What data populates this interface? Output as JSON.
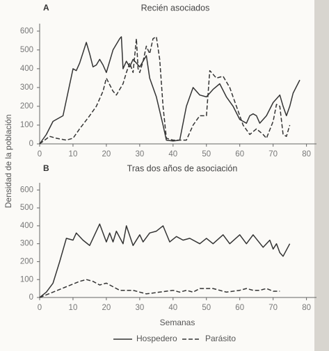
{
  "chart_data": [
    {
      "type": "line",
      "panel": "A",
      "title": "Recién asociados",
      "ylabel": "Densidad de la población",
      "xlim": [
        0,
        83
      ],
      "ylim": [
        0,
        640
      ],
      "xticks": [
        0,
        10,
        20,
        30,
        40,
        50,
        60,
        70,
        80
      ],
      "yticks": [
        0,
        100,
        200,
        300,
        400,
        500,
        600
      ],
      "series": [
        {
          "color": "#333333",
          "dash": false,
          "x": [
            0,
            2,
            4,
            5,
            7,
            10,
            11,
            12,
            14,
            15,
            16,
            17,
            18,
            19,
            20,
            22,
            24,
            24.5,
            25,
            26,
            27,
            28,
            29,
            30,
            32,
            33,
            34,
            35,
            37,
            38,
            40,
            42,
            44,
            46,
            48,
            50,
            52,
            54,
            56,
            58,
            60,
            62,
            63,
            64,
            65,
            66,
            68,
            70,
            72,
            73,
            74,
            75,
            76,
            78
          ],
          "values": [
            0,
            50,
            120,
            130,
            150,
            400,
            390,
            430,
            540,
            480,
            410,
            420,
            450,
            420,
            380,
            500,
            560,
            570,
            400,
            440,
            410,
            450,
            430,
            410,
            470,
            350,
            300,
            250,
            100,
            20,
            15,
            20,
            200,
            300,
            260,
            250,
            290,
            320,
            250,
            200,
            130,
            110,
            150,
            160,
            150,
            110,
            150,
            220,
            260,
            200,
            150,
            200,
            270,
            340
          ]
        },
        {
          "color": "#333333",
          "dash": true,
          "x": [
            0,
            3,
            5,
            8,
            10,
            12,
            15,
            17,
            19,
            20,
            22,
            23,
            25,
            26,
            27,
            28,
            29,
            29.5,
            30,
            31,
            32,
            33,
            34,
            35,
            36,
            37,
            38,
            40,
            44,
            46,
            48,
            50,
            51,
            53,
            55,
            57,
            59,
            61,
            63,
            65,
            67,
            68,
            70,
            71,
            72,
            73,
            74,
            75
          ],
          "values": [
            0,
            40,
            30,
            20,
            30,
            80,
            150,
            200,
            280,
            350,
            280,
            260,
            320,
            380,
            430,
            380,
            560,
            400,
            380,
            440,
            520,
            480,
            560,
            570,
            450,
            200,
            30,
            20,
            20,
            100,
            150,
            150,
            390,
            350,
            360,
            300,
            200,
            100,
            50,
            80,
            50,
            30,
            120,
            210,
            200,
            50,
            40,
            100
          ]
        }
      ]
    },
    {
      "type": "line",
      "panel": "B",
      "title": "Tras dos años de asociación",
      "xlabel": "Semanas",
      "xlim": [
        0,
        83
      ],
      "ylim": [
        0,
        640
      ],
      "xticks": [
        0,
        10,
        20,
        30,
        40,
        50,
        60,
        70,
        80
      ],
      "yticks": [
        0,
        100,
        200,
        300,
        400,
        500,
        600
      ],
      "series": [
        {
          "name": "Hospedero",
          "color": "#333333",
          "dash": false,
          "x": [
            0,
            2,
            4,
            6,
            8,
            10,
            11,
            13,
            15,
            18,
            20,
            21,
            22,
            23,
            25,
            26,
            28,
            30,
            31,
            33,
            35,
            37,
            39,
            41,
            43,
            45,
            48,
            50,
            52,
            55,
            57,
            60,
            62,
            64,
            67,
            69,
            70,
            71,
            72,
            73,
            75
          ],
          "values": [
            0,
            30,
            80,
            200,
            330,
            320,
            360,
            320,
            290,
            410,
            310,
            360,
            310,
            370,
            300,
            400,
            290,
            350,
            310,
            360,
            370,
            400,
            310,
            340,
            320,
            330,
            300,
            330,
            300,
            350,
            300,
            350,
            300,
            350,
            280,
            320,
            270,
            300,
            250,
            230,
            300
          ]
        },
        {
          "name": "Parásito",
          "color": "#333333",
          "dash": true,
          "x": [
            0,
            4,
            8,
            12,
            14,
            16,
            18,
            20,
            22,
            24,
            28,
            30,
            32,
            36,
            40,
            42,
            44,
            46,
            48,
            52,
            54,
            56,
            60,
            62,
            64,
            66,
            68,
            70,
            72
          ],
          "values": [
            0,
            30,
            60,
            90,
            100,
            90,
            70,
            80,
            60,
            40,
            40,
            30,
            20,
            30,
            40,
            30,
            40,
            30,
            50,
            50,
            40,
            30,
            40,
            50,
            40,
            40,
            50,
            35,
            35
          ]
        }
      ]
    }
  ]
}
